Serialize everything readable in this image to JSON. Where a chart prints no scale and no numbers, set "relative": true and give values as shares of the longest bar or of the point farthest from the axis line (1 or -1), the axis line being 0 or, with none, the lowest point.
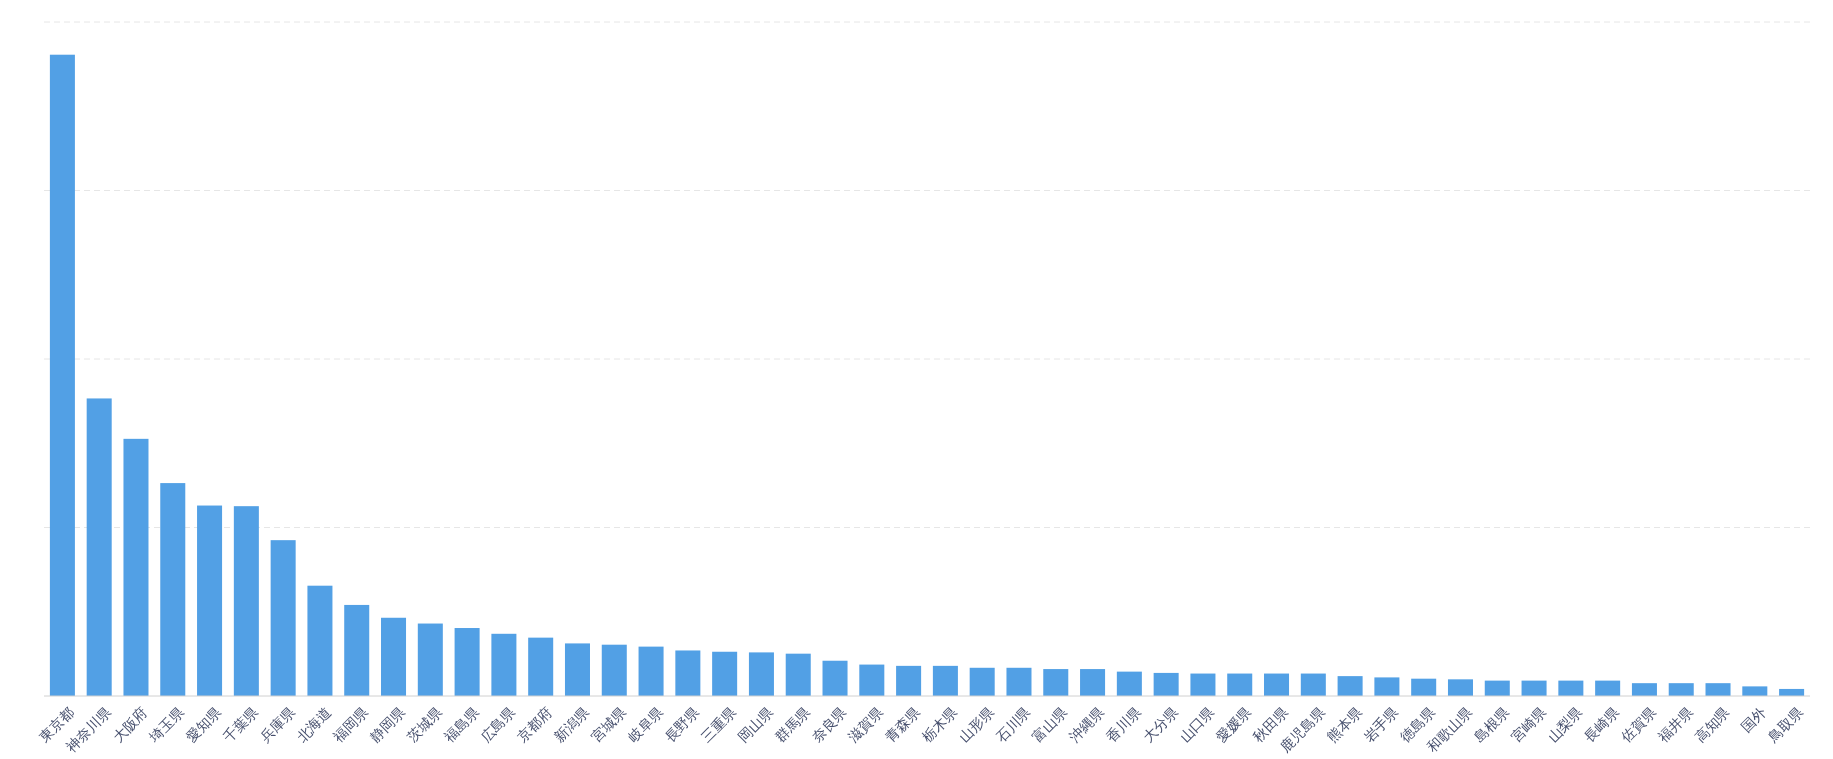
{
  "chart_data": {
    "type": "bar",
    "relative": true,
    "grid": "y",
    "color": "#52a0e5",
    "categories": [
      "東京都",
      "神奈川県",
      "大阪府",
      "埼玉県",
      "愛知県",
      "千葉県",
      "兵庫県",
      "北海道",
      "福岡県",
      "静岡県",
      "茨城県",
      "福島県",
      "広島県",
      "京都府",
      "新潟県",
      "宮城県",
      "岐阜県",
      "長野県",
      "三重県",
      "岡山県",
      "群馬県",
      "奈良県",
      "滋賀県",
      "青森県",
      "栃木県",
      "山形県",
      "石川県",
      "富山県",
      "沖縄県",
      "香川県",
      "大分県",
      "山口県",
      "愛媛県",
      "秋田県",
      "鹿児島県",
      "熊本県",
      "岩手県",
      "徳島県",
      "和歌山県",
      "島根県",
      "宮崎県",
      "山梨県",
      "長崎県",
      "佐賀県",
      "福井県",
      "高知県",
      "国外",
      "鳥取県"
    ],
    "values": [
      1,
      0.464,
      0.401,
      0.332,
      0.297,
      0.296,
      0.243,
      0.172,
      0.142,
      0.122,
      0.113,
      0.106,
      0.097,
      0.091,
      0.082,
      0.08,
      0.077,
      0.071,
      0.069,
      0.068,
      0.066,
      0.055,
      0.049,
      0.047,
      0.047,
      0.044,
      0.044,
      0.042,
      0.042,
      0.038,
      0.036,
      0.035,
      0.035,
      0.035,
      0.035,
      0.031,
      0.029,
      0.027,
      0.026,
      0.024,
      0.024,
      0.024,
      0.024,
      0.02,
      0.02,
      0.02,
      0.015,
      0.011
    ]
  }
}
